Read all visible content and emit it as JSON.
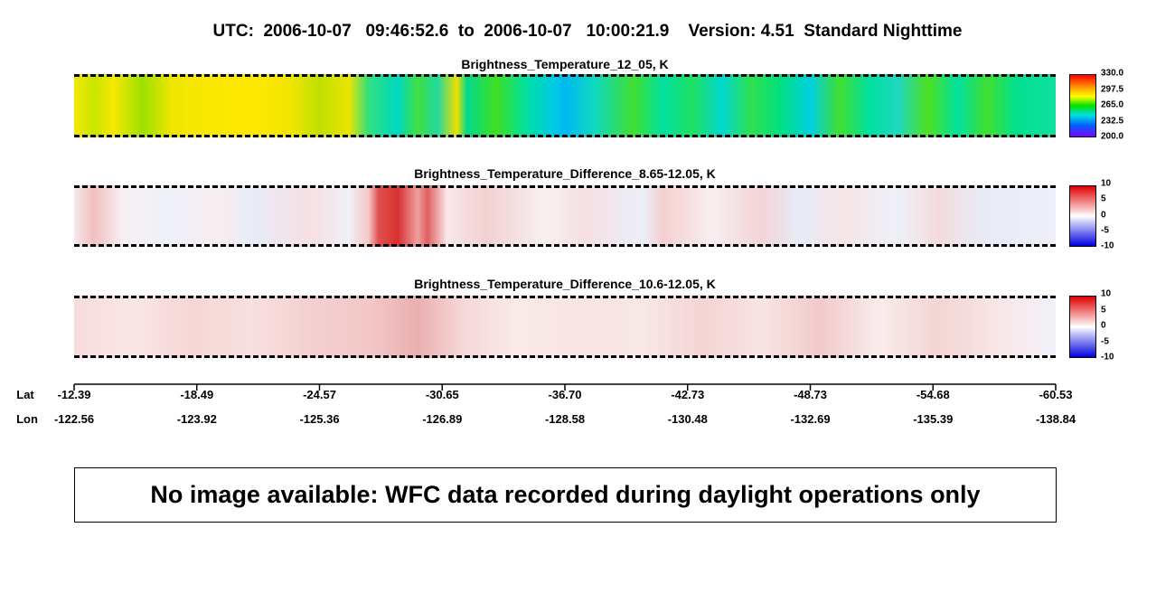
{
  "header": {
    "title": "UTC:  2006-10-07   09:46:52.6  to  2006-10-07   10:00:21.9    Version: 4.51  Standard Nighttime"
  },
  "panels": [
    {
      "title": "Brightness_Temperature_12_05, K",
      "colorbar": [
        "330.0",
        "297.5",
        "265.0",
        "232.5",
        "200.0"
      ]
    },
    {
      "title": "Brightness_Temperature_Difference_8.65-12.05, K",
      "colorbar": [
        "10",
        "5",
        "0",
        "-5",
        "-10"
      ]
    },
    {
      "title": "Brightness_Temperature_Difference_10.6-12.05, K",
      "colorbar": [
        "10",
        "5",
        "0",
        "-5",
        "-10"
      ]
    }
  ],
  "axis": {
    "lat_label": "Lat",
    "lon_label": "Lon",
    "lat": [
      "-12.39",
      "-18.49",
      "-24.57",
      "-30.65",
      "-36.70",
      "-42.73",
      "-48.73",
      "-54.68",
      "-60.53"
    ],
    "lon": [
      "-122.56",
      "-123.92",
      "-125.36",
      "-126.89",
      "-128.58",
      "-130.48",
      "-132.69",
      "-135.39",
      "-138.84"
    ]
  },
  "notice": "No image available: WFC data recorded during daylight operations only"
}
